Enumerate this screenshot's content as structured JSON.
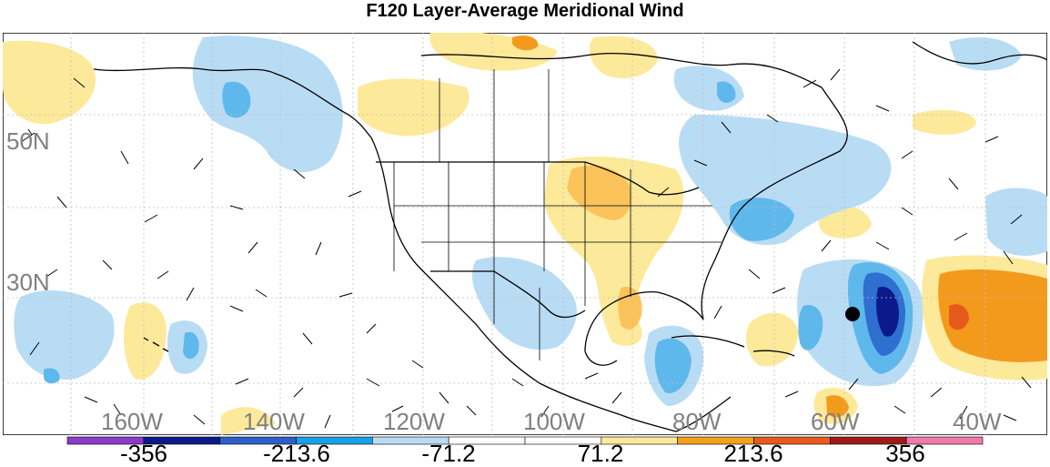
{
  "title": "F120 Layer-Average Meridional Wind",
  "map": {
    "lat_labels": [
      "50N",
      "30N"
    ],
    "lon_labels": [
      "160W",
      "140W",
      "120W",
      "100W",
      "80W",
      "60W",
      "40W"
    ],
    "label_color": "#808080",
    "background": "#ffffff",
    "pos_light": "#fde99a",
    "pos_mid": "#fbc35a",
    "pos_strong": "#f39a1c",
    "pos_extreme": "#e85a1c",
    "neg_light": "#b9dcf5",
    "neg_mid": "#5fb8ec",
    "neg_strong": "#2e6fd0",
    "neg_extreme": "#0b1a8a",
    "storm_marker": "black dot"
  },
  "colorbar": {
    "swatches": [
      "#8a3cc8",
      "#0b1a8a",
      "#2e5fc8",
      "#1aa0e8",
      "#b9dcf5",
      "#ffffff",
      "#ffffff",
      "#fde99a",
      "#f3a01c",
      "#e85a1c",
      "#a01a1a",
      "#f07aa8"
    ],
    "labels": [
      "-356",
      "-213.6",
      "-71.2",
      "71.2",
      "213.6",
      "356"
    ]
  }
}
